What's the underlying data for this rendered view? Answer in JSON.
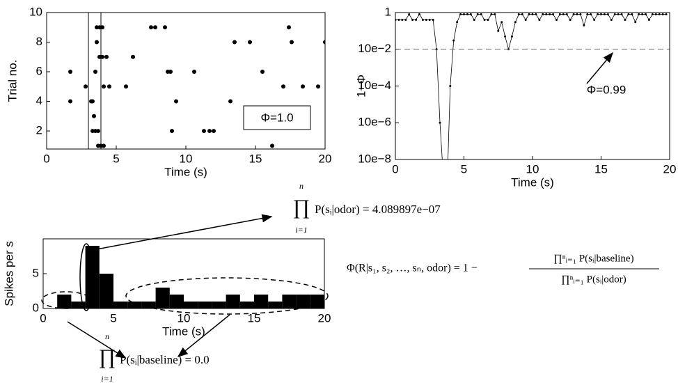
{
  "chart_data": [
    {
      "type": "scatter",
      "xlabel": "Time (s)",
      "ylabel": "Trial no.",
      "color": "#000000",
      "x": [
        1.7,
        1.7,
        2.8,
        3.2,
        3.3,
        3.3,
        3.4,
        3.5,
        3.5,
        3.6,
        3.6,
        3.7,
        3.7,
        3.8,
        3.8,
        3.9,
        4.0,
        4.0,
        4.1,
        4.1,
        4.3,
        4.5,
        5.7,
        6.2,
        7.5,
        7.8,
        8.5,
        8.7,
        8.9,
        9.0,
        9.3,
        10.6,
        11.3,
        11.7,
        12.0,
        13.2,
        13.5,
        14.6,
        15.5,
        16.2,
        17.0,
        17.4,
        17.6,
        18.4,
        19.5,
        20.0
      ],
      "values": [
        6,
        4,
        5,
        4,
        4,
        2,
        3,
        6,
        2,
        9,
        8,
        1,
        2,
        9,
        7,
        1,
        9,
        7,
        1,
        5,
        7,
        5,
        5,
        7,
        9,
        9,
        9,
        6,
        6,
        2,
        4,
        6,
        2,
        2,
        2,
        4,
        8,
        8,
        6,
        1,
        5,
        9,
        8,
        5,
        5,
        8
      ],
      "xlim": [
        0,
        20
      ],
      "ylim": [
        0.78,
        10
      ],
      "xticks": [
        0,
        5,
        10,
        15,
        20
      ],
      "yticks": [
        2,
        4,
        6,
        8,
        10
      ],
      "markers": [
        3.0,
        3.9
      ],
      "box_label": "Φ=1.0"
    },
    {
      "type": "line",
      "xlabel": "Time (s)",
      "ylabel": "1−Φ",
      "log_scale": true,
      "color": "#000000",
      "x": [
        0,
        0.25,
        0.5,
        0.75,
        1,
        1.25,
        1.5,
        1.75,
        2,
        2.25,
        2.5,
        2.75,
        3,
        3.25,
        3.5,
        3.75,
        4,
        4.25,
        4.5,
        4.75,
        5,
        5.25,
        5.5,
        5.75,
        6,
        6.25,
        6.5,
        6.75,
        7,
        7.25,
        7.5,
        7.75,
        8,
        8.25,
        8.5,
        8.75,
        9,
        9.25,
        9.5,
        9.75,
        10,
        10.25,
        10.5,
        10.75,
        11,
        11.25,
        11.5,
        11.75,
        12,
        12.25,
        12.5,
        12.75,
        13,
        13.25,
        13.5,
        13.75,
        14,
        14.25,
        14.5,
        14.75,
        15,
        15.25,
        15.5,
        15.75,
        16,
        16.25,
        16.5,
        16.75,
        17,
        17.25,
        17.5,
        17.75,
        18,
        18.25,
        18.5,
        18.75,
        19,
        19.25,
        19.5,
        19.75
      ],
      "values": [
        0.4,
        0.4,
        0.4,
        0.4,
        0.8,
        0.4,
        0.4,
        0.8,
        0.4,
        0.4,
        0.4,
        0.4,
        0.01,
        1e-06,
        1e-09,
        1e-10,
        0.0001,
        0.03,
        0.3,
        0.8,
        0.8,
        0.8,
        0.8,
        0.4,
        0.8,
        0.8,
        0.4,
        0.4,
        0.8,
        0.8,
        0.1,
        0.3,
        0.05,
        0.01,
        0.05,
        0.3,
        0.8,
        0.8,
        0.4,
        0.8,
        0.8,
        0.8,
        0.4,
        0.8,
        0.8,
        0.8,
        0.8,
        0.4,
        0.8,
        0.8,
        0.8,
        0.4,
        0.8,
        0.8,
        0.8,
        0.2,
        0.8,
        0.8,
        0.4,
        0.8,
        0.8,
        0.8,
        0.8,
        0.4,
        0.8,
        0.8,
        0.8,
        0.4,
        0.8,
        0.8,
        0.3,
        0.8,
        0.8,
        0.8,
        0.4,
        0.8,
        0.8,
        0.8,
        0.8,
        0.8
      ],
      "xlim": [
        0,
        20
      ],
      "ylim": [
        1e-08,
        1
      ],
      "xticks": [
        0,
        5,
        10,
        15,
        20
      ],
      "yticks": [
        {
          "value": 1e-08,
          "label": "10e−8"
        },
        {
          "value": 1e-06,
          "label": "10e−6"
        },
        {
          "value": 0.0001,
          "label": "10e−4"
        },
        {
          "value": 0.01,
          "label": "10e−2"
        },
        1
      ],
      "reference": 0.01,
      "reference_label": "Φ=0.99"
    },
    {
      "type": "histogram",
      "xlabel": "Time (s)",
      "ylabel": "Spikes per s",
      "color": "#000000",
      "bins": [
        0,
        1,
        2,
        3,
        4,
        5,
        6,
        7,
        8,
        9,
        10,
        11,
        12,
        13,
        14,
        15,
        16,
        17,
        18,
        19,
        20
      ],
      "values": [
        0,
        2,
        1,
        9,
        5,
        1,
        1,
        1,
        3,
        2,
        1,
        1,
        1,
        2,
        1,
        2,
        1,
        2,
        2,
        2
      ],
      "xlim": [
        0,
        20
      ],
      "ylim": [
        0,
        10
      ],
      "xticks": [
        0,
        5,
        10,
        15,
        20
      ],
      "yticks": [
        0,
        5
      ]
    }
  ],
  "equations": {
    "odor": {
      "symbol": "∏",
      "upper": "n",
      "lower": "i=1",
      "expression": "P(sᵢ|odor) = 4.089897e−07"
    },
    "baseline": {
      "symbol": "∏",
      "upper": "n",
      "lower": "i=1",
      "expression": "P(sᵢ|baseline) = 0.0"
    },
    "phi": {
      "left": "Φ(R|s₁, s₂, …, sₙ, odor) = 1 −",
      "numerator": "∏ⁿᵢ₌₁ P(sᵢ|baseline)",
      "denominator": "∏ⁿᵢ₌₁ P(sᵢ|odor)"
    }
  }
}
